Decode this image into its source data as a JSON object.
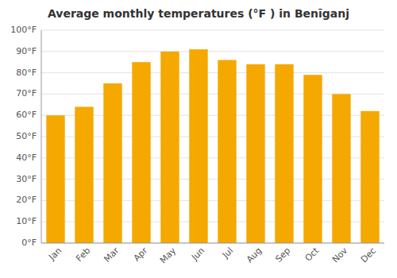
{
  "chart_data": {
    "type": "bar",
    "title": "Average monthly temperatures (°F ) in Benīganj",
    "categories": [
      "Jan",
      "Feb",
      "Mar",
      "Apr",
      "May",
      "Jun",
      "Jul",
      "Aug",
      "Sep",
      "Oct",
      "Nov",
      "Dec"
    ],
    "values": [
      60,
      64,
      75,
      85,
      90,
      91,
      86,
      84,
      84,
      79,
      70,
      62
    ],
    "color": "#F5A800",
    "ylim": [
      0,
      100
    ],
    "yticks": [
      {
        "value": 0,
        "label": "0°F"
      },
      {
        "value": 10,
        "label": "10°F"
      },
      {
        "value": 20,
        "label": "20°F"
      },
      {
        "value": 30,
        "label": "30°F"
      },
      {
        "value": 40,
        "label": "40°F"
      },
      {
        "value": 50,
        "label": "50°F"
      },
      {
        "value": 60,
        "label": "60°F"
      },
      {
        "value": 70,
        "label": "70°F"
      },
      {
        "value": 80,
        "label": "80°F"
      },
      {
        "value": 90,
        "label": "90°F"
      },
      {
        "value": 100,
        "label": "100°F"
      }
    ],
    "grid": true
  }
}
